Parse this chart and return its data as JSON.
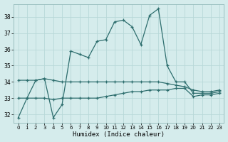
{
  "xlabel": "Humidex (Indice chaleur)",
  "x": [
    0,
    1,
    2,
    3,
    4,
    5,
    6,
    7,
    8,
    9,
    10,
    11,
    12,
    13,
    14,
    15,
    16,
    17,
    18,
    19,
    20,
    21,
    22,
    23
  ],
  "line1": [
    31.8,
    33.0,
    34.1,
    34.2,
    31.8,
    32.6,
    35.9,
    35.7,
    35.5,
    36.5,
    36.6,
    37.7,
    37.8,
    37.4,
    36.3,
    38.1,
    38.5,
    35.0,
    34.0,
    34.0,
    33.3,
    33.3,
    33.3,
    33.4
  ],
  "line2": [
    34.1,
    34.1,
    34.1,
    34.2,
    34.1,
    34.0,
    34.0,
    34.0,
    34.0,
    34.0,
    34.0,
    34.0,
    34.0,
    34.0,
    34.0,
    34.0,
    34.0,
    33.9,
    33.8,
    33.7,
    33.5,
    33.4,
    33.4,
    33.5
  ],
  "line3": [
    33.0,
    33.0,
    33.0,
    33.0,
    32.9,
    33.0,
    33.0,
    33.0,
    33.0,
    33.0,
    33.1,
    33.2,
    33.3,
    33.4,
    33.4,
    33.5,
    33.5,
    33.5,
    33.6,
    33.6,
    33.1,
    33.2,
    33.2,
    33.3
  ],
  "line_color": "#2e6e6e",
  "bg_color": "#d5ecec",
  "grid_color": "#b8d8d8",
  "ylim": [
    31.5,
    38.8
  ],
  "yticks": [
    32,
    33,
    34,
    35,
    36,
    37,
    38
  ],
  "xlim": [
    -0.5,
    23.5
  ],
  "xticks": [
    0,
    1,
    2,
    3,
    4,
    5,
    6,
    7,
    8,
    9,
    10,
    11,
    12,
    13,
    14,
    15,
    16,
    17,
    18,
    19,
    20,
    21,
    22,
    23
  ]
}
